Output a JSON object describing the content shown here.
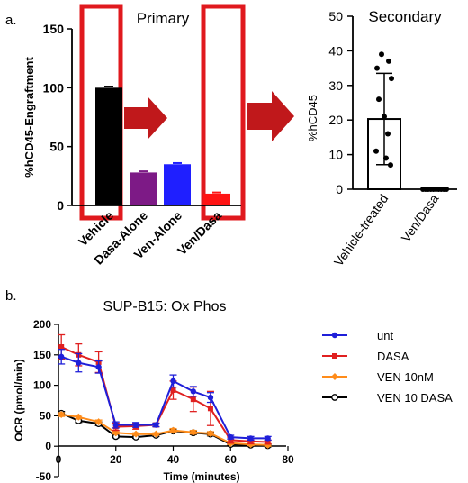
{
  "panel_labels": {
    "a": "a.",
    "b": "b."
  },
  "chart_data": [
    {
      "type": "bar",
      "title": "Primary",
      "ylabel": "%hCD45-Engraftment",
      "xlabel": "",
      "ylim": [
        0,
        150
      ],
      "yticks": [
        0,
        50,
        100,
        150
      ],
      "grid": false,
      "categories": [
        "Vehicle",
        "Dasa-Alone",
        "Ven-Alone",
        "Ven/Dasa"
      ],
      "values": [
        100,
        28,
        35,
        10
      ],
      "errors": [
        1,
        1,
        1,
        1
      ],
      "colors": [
        "#000000",
        "#7d1a86",
        "#1f1fff",
        "#ff1414"
      ],
      "highlight_categories": [
        "Vehicle",
        "Ven/Dasa"
      ],
      "highlight_color": "#e0191e",
      "arrow_color": "#c0181b"
    },
    {
      "type": "bar",
      "title": "Secondary",
      "ylabel": "%hCD45",
      "xlabel": "",
      "ylim": [
        0,
        50
      ],
      "yticks": [
        0,
        10,
        20,
        30,
        40,
        50
      ],
      "grid": false,
      "categories": [
        "Vehicle-treated",
        "Ven/Dasa"
      ],
      "values": [
        20.3,
        0
      ],
      "errors": [
        13.2,
        0
      ],
      "points": [
        [
          39,
          37,
          35,
          32,
          26,
          21,
          16,
          11,
          9,
          7
        ],
        [
          0,
          0,
          0,
          0,
          0,
          0,
          0,
          0,
          0,
          0
        ]
      ]
    },
    {
      "type": "line",
      "title": "SUP-B15: Ox Phos",
      "xlabel": "Time (minutes)",
      "ylabel": "OCR (pmol/min)",
      "xlim": [
        0,
        80
      ],
      "ylim": [
        -50,
        200
      ],
      "xticks": [
        0,
        20,
        40,
        60,
        80
      ],
      "yticks": [
        -50,
        0,
        50,
        100,
        150,
        200
      ],
      "grid": false,
      "legend_position": "right",
      "x": [
        1,
        7,
        14,
        20,
        27,
        34,
        40,
        47,
        53,
        60,
        67,
        73
      ],
      "series": [
        {
          "name": "unt",
          "color": "#1f1fd9",
          "marker": "circle",
          "values": [
            147,
            137,
            130,
            35,
            35,
            35,
            107,
            90,
            80,
            15,
            13,
            13
          ],
          "errors": [
            12,
            15,
            10,
            5,
            4,
            3,
            10,
            8,
            8,
            3,
            3,
            3
          ]
        },
        {
          "name": "DASA",
          "color": "#e02020",
          "marker": "square",
          "values": [
            163,
            150,
            138,
            32,
            33,
            35,
            92,
            77,
            62,
            10,
            8,
            7
          ],
          "errors": [
            20,
            18,
            17,
            6,
            5,
            3,
            15,
            20,
            28,
            5,
            4,
            3
          ]
        },
        {
          "name": "VEN 10nM",
          "color": "#ff8c1a",
          "marker": "diamond",
          "values": [
            52,
            48,
            40,
            22,
            20,
            20,
            26,
            23,
            21,
            5,
            3,
            2
          ],
          "errors": [
            3,
            3,
            3,
            2,
            2,
            2,
            3,
            3,
            3,
            2,
            2,
            2
          ]
        },
        {
          "name": "VEN 10 DASA",
          "color": "#000000",
          "marker": "open-circle",
          "values": [
            54,
            42,
            37,
            16,
            15,
            18,
            25,
            22,
            20,
            3,
            2,
            1
          ],
          "errors": [
            3,
            3,
            3,
            2,
            2,
            2,
            3,
            3,
            3,
            2,
            2,
            2
          ]
        }
      ]
    }
  ]
}
